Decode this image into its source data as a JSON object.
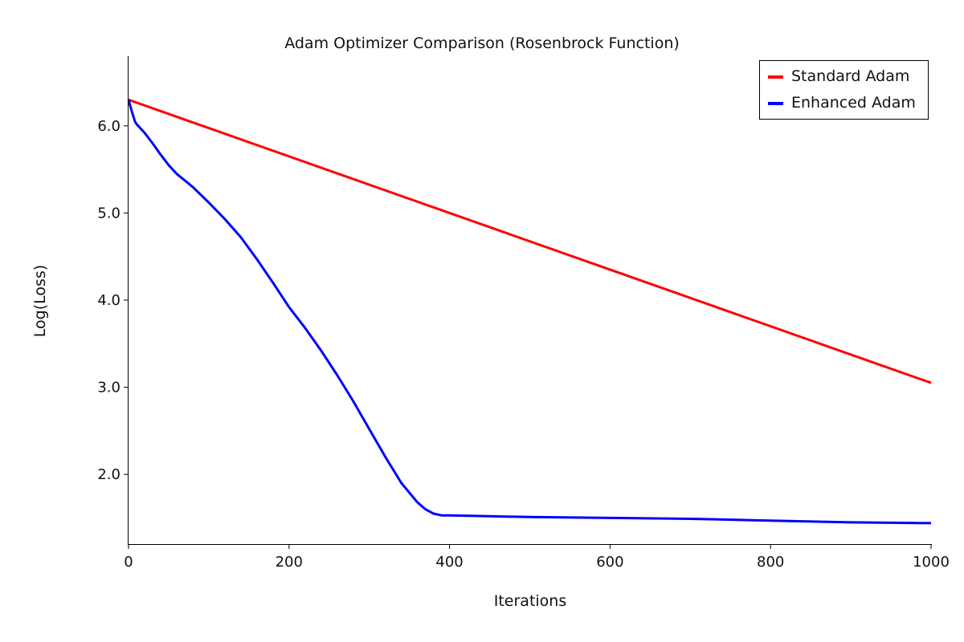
{
  "chart_data": {
    "type": "line",
    "title": "Adam Optimizer Comparison (Rosenbrock Function)",
    "xlabel": "Iterations",
    "ylabel": "Log(Loss)",
    "xlim": [
      0,
      1000
    ],
    "ylim": [
      1.2,
      6.8
    ],
    "x_ticks": [
      0,
      200,
      400,
      600,
      800,
      1000
    ],
    "x_tick_labels": [
      "0",
      "200",
      "400",
      "600",
      "800",
      "1000"
    ],
    "y_ticks": [
      2.0,
      3.0,
      4.0,
      5.0,
      6.0
    ],
    "y_tick_labels": [
      "2.0",
      "3.0",
      "4.0",
      "5.0",
      "6.0"
    ],
    "grid": false,
    "legend_position": "top-right",
    "series": [
      {
        "name": "Standard Adam",
        "color": "#ff0000",
        "x": [
          0,
          1000
        ],
        "y": [
          6.3,
          3.05
        ]
      },
      {
        "name": "Enhanced Adam",
        "color": "#0000ff",
        "x": [
          0,
          3,
          8,
          10,
          20,
          30,
          40,
          50,
          60,
          80,
          100,
          120,
          140,
          160,
          180,
          200,
          220,
          240,
          260,
          280,
          300,
          320,
          340,
          360,
          370,
          380,
          390,
          400,
          450,
          500,
          600,
          700,
          800,
          900,
          1000
        ],
        "y": [
          6.3,
          6.2,
          6.05,
          6.02,
          5.92,
          5.8,
          5.67,
          5.55,
          5.45,
          5.3,
          5.12,
          4.93,
          4.72,
          4.47,
          4.2,
          3.92,
          3.68,
          3.42,
          3.14,
          2.84,
          2.52,
          2.2,
          1.9,
          1.68,
          1.6,
          1.55,
          1.53,
          1.53,
          1.52,
          1.51,
          1.5,
          1.49,
          1.47,
          1.45,
          1.44
        ]
      }
    ]
  }
}
